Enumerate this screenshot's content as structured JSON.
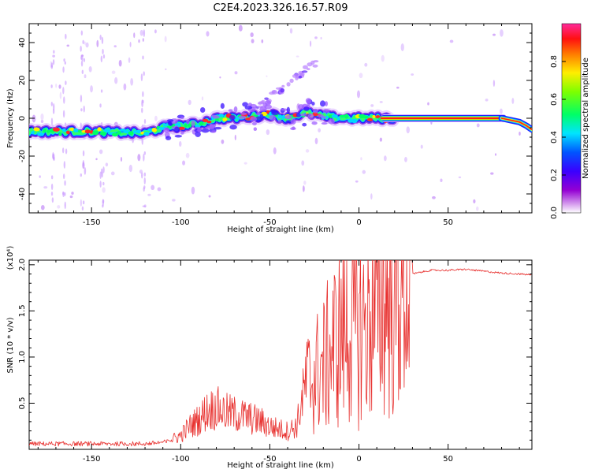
{
  "title": "C2E4.2023.326.16.57.R09",
  "chart_data": [
    {
      "type": "heatmap",
      "xlabel": "Height of straight line (km)",
      "ylabel": "Frequency (Hz)",
      "xlim": [
        -185,
        97
      ],
      "ylim": [
        -50,
        50
      ],
      "x_ticks": [
        -150,
        -100,
        -50,
        0,
        50
      ],
      "y_ticks": [
        -40,
        -20,
        0,
        20,
        40
      ],
      "colorbar": {
        "label": "Normalized spectral amplitude",
        "range": [
          0.0,
          1.0
        ],
        "ticks": [
          0.0,
          0.2,
          0.4,
          0.6,
          0.8
        ],
        "tick_labels": [
          "0.0",
          "0.2",
          "0.4",
          "0.6",
          "0.8"
        ]
      },
      "ridge": {
        "x": [
          -185,
          -150,
          -120,
          -110,
          -100,
          -90,
          -80,
          -70,
          -60,
          -50,
          -40,
          -30,
          -25,
          -20,
          -10,
          0,
          10,
          20,
          80,
          90,
          97
        ],
        "y": [
          -7,
          -7,
          -8,
          -5,
          -4,
          -3,
          0,
          0,
          1,
          2,
          0,
          3,
          2,
          1,
          0,
          0,
          0,
          0,
          0,
          -2,
          -5
        ]
      }
    },
    {
      "type": "line",
      "xlabel": "Height of straight line (km)",
      "ylabel": "SNR (10 * v/v)",
      "y_scale_label": "(x10⁴)",
      "xlim": [
        -185,
        97
      ],
      "ylim": [
        0,
        2.05
      ],
      "x_ticks": [
        -150,
        -100,
        -50,
        0,
        50
      ],
      "y_ticks": [
        0.5,
        1.0,
        1.5,
        2.0
      ],
      "y_tick_labels": [
        "0.5",
        "1.0",
        "1.5",
        "2.0"
      ],
      "series_color": "#e8312f",
      "envelope": {
        "x": [
          -185,
          -150,
          -120,
          -108,
          -100,
          -95,
          -90,
          -85,
          -80,
          -75,
          -70,
          -65,
          -60,
          -55,
          -50,
          -45,
          -40,
          -35,
          -30,
          -25,
          -20,
          -15,
          -10,
          -5,
          0,
          5,
          10,
          15,
          20,
          25,
          30,
          40,
          50,
          60,
          70,
          80,
          90,
          97
        ],
        "y": [
          0.06,
          0.06,
          0.06,
          0.08,
          0.15,
          0.25,
          0.32,
          0.42,
          0.45,
          0.4,
          0.38,
          0.36,
          0.33,
          0.3,
          0.25,
          0.22,
          0.2,
          0.25,
          0.7,
          0.8,
          0.9,
          1.1,
          1.25,
          1.35,
          1.3,
          1.4,
          1.55,
          1.65,
          1.7,
          1.8,
          1.9,
          1.94,
          1.94,
          1.95,
          1.93,
          1.91,
          1.9,
          1.89
        ]
      }
    }
  ]
}
